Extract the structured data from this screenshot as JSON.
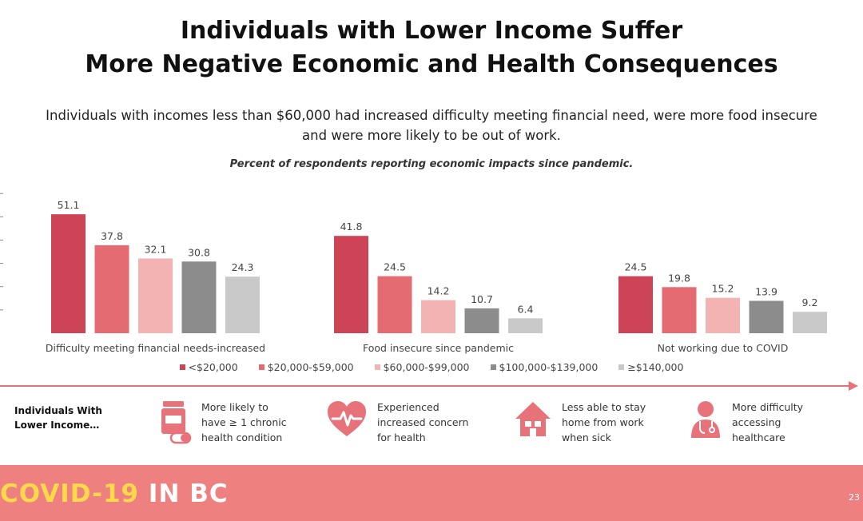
{
  "slide": {
    "title_line1": "Individuals with Lower Income Suffer",
    "title_line2": "More Negative Economic and Health Consequences",
    "subtitle_line1": "Individuals with incomes less than $60,000 had increased difficulty meeting financial need, were more food insecure",
    "subtitle_line2": "and were more likely to be out of work.",
    "chart_caption": "Percent of respondents reporting economic impacts since pandemic."
  },
  "chart_data": {
    "type": "bar",
    "categories": [
      "Difficulty meeting financial needs-increased",
      "Food insecure since pandemic",
      "Not working due to COVID"
    ],
    "series": [
      {
        "name": "<$20,000",
        "color": "#cc4455",
        "values": [
          51.1,
          41.8,
          24.5
        ]
      },
      {
        "name": "$20,000-$59,000",
        "color": "#e56b72",
        "values": [
          37.8,
          24.5,
          19.8
        ]
      },
      {
        "name": "$60,000-$99,000",
        "color": "#f4b3b3",
        "values": [
          32.1,
          14.2,
          15.2
        ]
      },
      {
        "name": "$100,000-$139,000",
        "color": "#8c8c8c",
        "values": [
          30.8,
          10.7,
          13.9
        ]
      },
      {
        "name": "≥$140,000",
        "color": "#c9c9c9",
        "values": [
          24.3,
          6.4,
          9.2
        ]
      }
    ],
    "ylim": [
      0,
      60
    ],
    "grid": false,
    "legend": "bottom"
  },
  "summary": {
    "label_line1": "Individuals With",
    "label_line2": "Lower Income…",
    "items": [
      {
        "icon": "pill-bottle-icon",
        "lines": [
          "More likely to",
          "have ≥ 1 chronic",
          "health condition"
        ]
      },
      {
        "icon": "heart-pulse-icon",
        "lines": [
          "Experienced",
          "increased concern",
          "for health"
        ]
      },
      {
        "icon": "house-icon",
        "lines": [
          "Less able to stay",
          "home from work",
          "when sick"
        ]
      },
      {
        "icon": "doctor-icon",
        "lines": [
          "More difficulty",
          "accessing",
          "healthcare"
        ]
      }
    ]
  },
  "colors": {
    "accent": "#e8727a",
    "footer": "#ef8080",
    "brand_yellow": "#ffd94a"
  },
  "footer": {
    "brand_part1": "COVID-19",
    "brand_part2": " IN BC",
    "page_number": "23"
  }
}
